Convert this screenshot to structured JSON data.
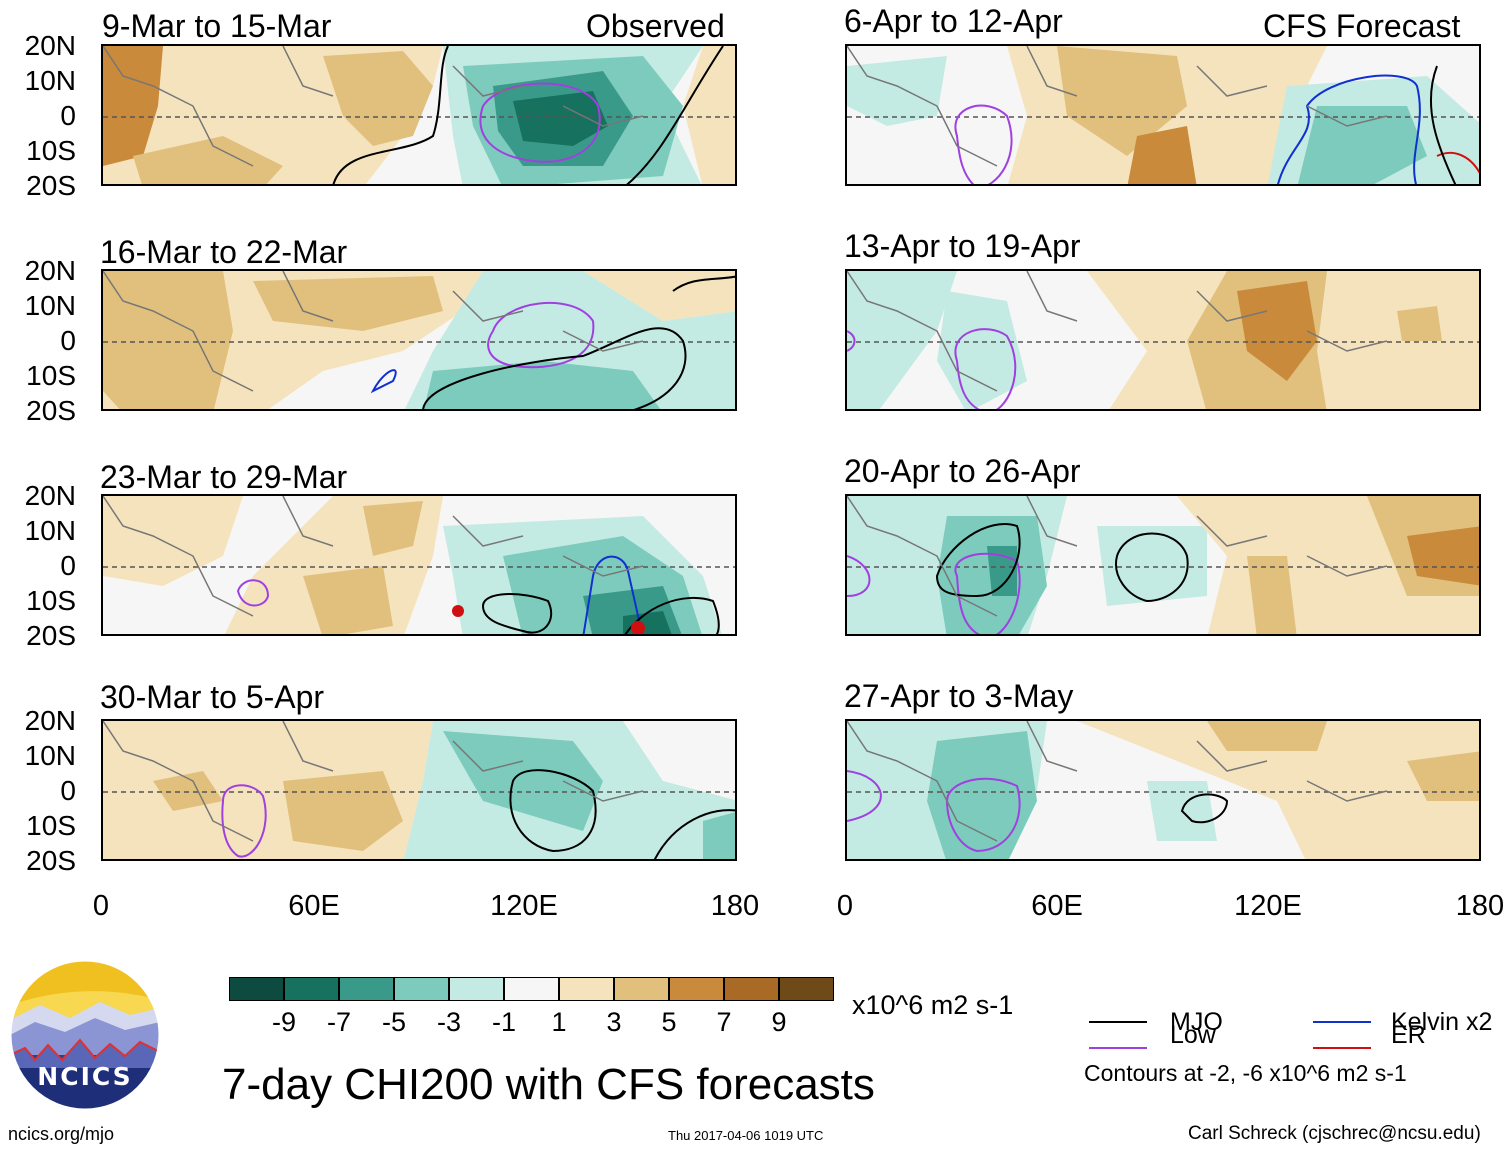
{
  "columns": {
    "left_header": "Observed",
    "right_header": "CFS Forecast"
  },
  "panels_observed": [
    {
      "period": "9-Mar to 15-Mar"
    },
    {
      "period": "16-Mar to 22-Mar"
    },
    {
      "period": "23-Mar to 29-Mar"
    },
    {
      "period": "30-Mar to 5-Apr"
    }
  ],
  "panels_forecast": [
    {
      "period": "6-Apr to 12-Apr"
    },
    {
      "period": "13-Apr to 19-Apr"
    },
    {
      "period": "20-Apr to 26-Apr"
    },
    {
      "period": "27-Apr to 3-May"
    }
  ],
  "lat_labels": [
    "20N",
    "10N",
    "0",
    "10S",
    "20S"
  ],
  "lon_labels": [
    "0",
    "60E",
    "120E",
    "180"
  ],
  "colorbar": {
    "colors": [
      "#0d4a40",
      "#16715f",
      "#3a9a8a",
      "#7dcbbd",
      "#c4ebe3",
      "#f6f6f6",
      "#f5e3bd",
      "#e0c07c",
      "#c98a3b",
      "#a86a24",
      "#6d4a18"
    ],
    "labels": [
      "-9",
      "-7",
      "-5",
      "-3",
      "-1",
      "1",
      "3",
      "5",
      "7",
      "9"
    ],
    "units": "x10^6 m2 s-1"
  },
  "contour_legend": {
    "items": [
      {
        "label": "MJO",
        "color": "#000000"
      },
      {
        "label": "Low",
        "color": "#a040e0"
      },
      {
        "label": "Kelvin x2",
        "color": "#1030d0"
      },
      {
        "label": "ER",
        "color": "#d01010"
      }
    ],
    "note": "Contours at -2, -6 x10^6 m2 s-1"
  },
  "logo": {
    "text": "NCICS"
  },
  "main_title": "7-day CHI200 with CFS forecasts",
  "footer": {
    "url": "ncics.org/mjo",
    "timestamp": "Thu 2017-04-06 1019 UTC",
    "credit": "Carl Schreck (cjschrec@ncsu.edu)"
  }
}
